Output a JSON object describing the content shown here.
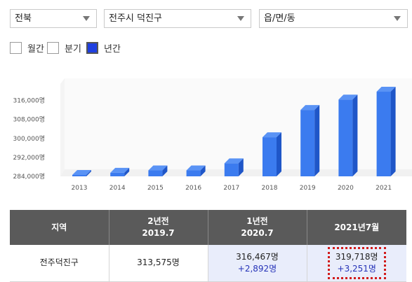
{
  "filters": {
    "province": "전북",
    "city": "전주시 덕진구",
    "dong_placeholder": "읍/면/동"
  },
  "period": {
    "month_label": "월간",
    "quarter_label": "분기",
    "year_label": "년간",
    "selected": "year"
  },
  "colors": {
    "bar": "#3b7bef",
    "bar_top": "#5a93f5",
    "bar_side": "#1f56c8",
    "checked": "#1f3fe0"
  },
  "chart_data": {
    "type": "bar",
    "categories": [
      "2013",
      "2014",
      "2015",
      "2016",
      "2017",
      "2018",
      "2019",
      "2020",
      "2021"
    ],
    "values": [
      284600,
      285500,
      286500,
      286500,
      289500,
      300500,
      312000,
      316400,
      319700
    ],
    "ylim": [
      284000,
      320000
    ],
    "yticks": [
      284000,
      292000,
      300000,
      308000,
      316000
    ],
    "ytick_labels": [
      "284,000명",
      "292,000명",
      "300,000명",
      "308,000명",
      "316,000명"
    ],
    "grid": false
  },
  "table": {
    "headers": [
      {
        "line1": "지역",
        "line2": ""
      },
      {
        "line1": "2년전",
        "line2": "2019.7"
      },
      {
        "line1": "1년전",
        "line2": "2020.7"
      },
      {
        "line1": "2021년7월",
        "line2": ""
      }
    ],
    "row": {
      "region": "전주덕진구",
      "two_years_ago": "313,575명",
      "one_year_ago": "316,467명",
      "one_year_change": "+2,892명",
      "current": "319,718명",
      "current_change": "+3,251명"
    }
  }
}
